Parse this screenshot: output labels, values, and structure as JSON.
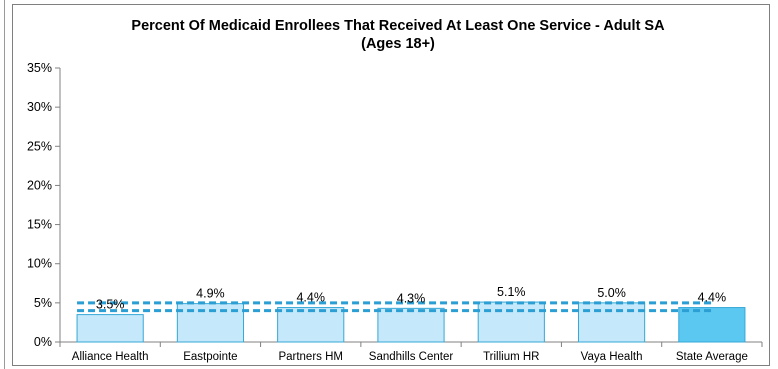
{
  "chart_data": {
    "type": "bar",
    "title_lines": [
      "Percent Of Medicaid Enrollees That Received At Least One Service - Adult SA",
      "(Ages 18+)"
    ],
    "categories": [
      "Alliance Health",
      "Eastpointe",
      "Partners HM",
      "Sandhills Center",
      "Trillium HR",
      "Vaya Health",
      "State Average"
    ],
    "values": [
      3.5,
      4.9,
      4.4,
      4.3,
      5.1,
      5.0,
      4.4
    ],
    "data_labels": [
      "3.5%",
      "4.9%",
      "4.4%",
      "4.3%",
      "5.1%",
      "5.0%",
      "4.4%"
    ],
    "ylim": [
      0,
      35
    ],
    "yticks": [
      0,
      5,
      10,
      15,
      20,
      25,
      30,
      35
    ],
    "ytick_labels": [
      "0%",
      "5%",
      "10%",
      "15%",
      "20%",
      "25%",
      "30%",
      "35%"
    ],
    "reference_lines": [
      5.0,
      4.0
    ],
    "grid": false,
    "colors": {
      "bar_fill": "#c5e8fb",
      "bar_stroke": "#35a8d6",
      "highlight_fill": "#5bc8f2",
      "reference_line": "#2b9fd3"
    }
  }
}
